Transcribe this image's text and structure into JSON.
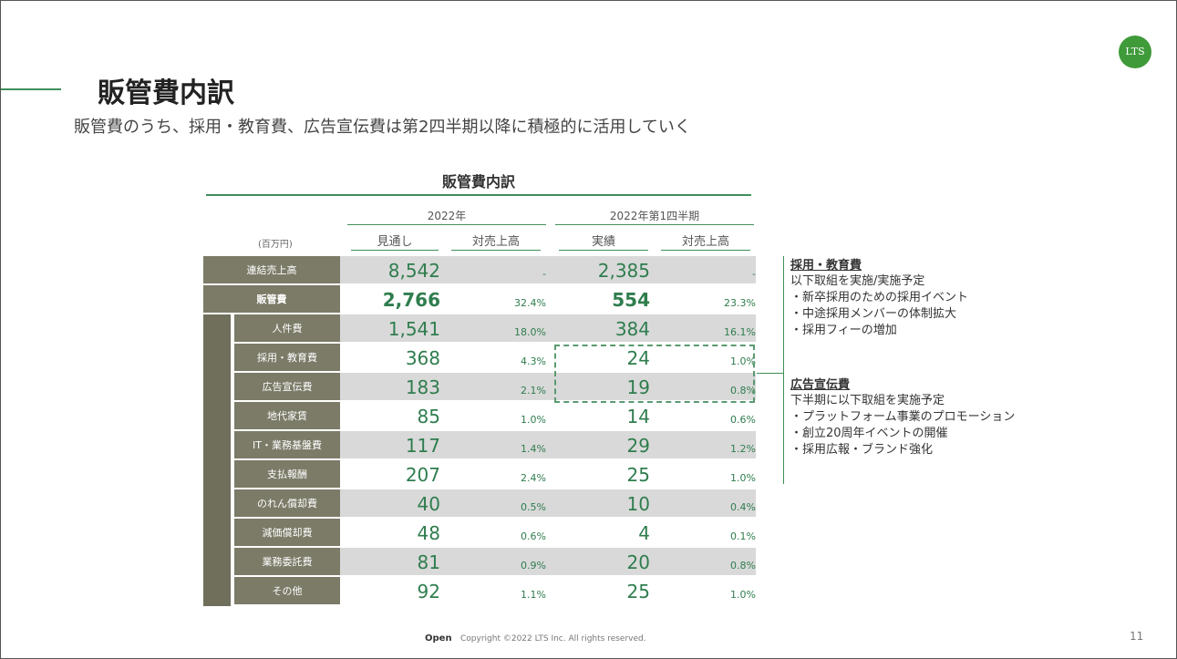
{
  "header": {
    "title": "販管費内訳",
    "subtitle": "販管費のうち、採用・教育費、広告宣伝費は第2四半期以降に積極的に活用していく",
    "logo": "LTS"
  },
  "table": {
    "title": "販管費内訳",
    "unit": "(百万円)",
    "groups": [
      "2022年",
      "2022年第1四半期"
    ],
    "columns": [
      "見通し",
      "対売上高",
      "実績",
      "対売上高"
    ],
    "rows": [
      [
        "連結売上高",
        "8,542",
        "-",
        "2,385",
        "-"
      ],
      [
        "販管費",
        "2,766",
        "32.4%",
        "554",
        "23.3%"
      ],
      [
        "人件費",
        "1,541",
        "18.0%",
        "384",
        "16.1%"
      ],
      [
        "採用・教育費",
        "368",
        "4.3%",
        "24",
        "1.0%"
      ],
      [
        "広告宣伝費",
        "183",
        "2.1%",
        "19",
        "0.8%"
      ],
      [
        "地代家賃",
        "85",
        "1.0%",
        "14",
        "0.6%"
      ],
      [
        "IT・業務基盤費",
        "117",
        "1.4%",
        "29",
        "1.2%"
      ],
      [
        "支払報酬",
        "207",
        "2.4%",
        "25",
        "1.0%"
      ],
      [
        "のれん償却費",
        "40",
        "0.5%",
        "10",
        "0.4%"
      ],
      [
        "減価償却費",
        "48",
        "0.6%",
        "4",
        "0.1%"
      ],
      [
        "業務委託費",
        "81",
        "0.9%",
        "20",
        "0.8%"
      ],
      [
        "その他",
        "92",
        "1.1%",
        "25",
        "1.0%"
      ]
    ]
  },
  "notes": [
    {
      "heading": "採用・教育費",
      "lines": [
        "以下取組を実施/実施予定",
        "・新卒採用のための採用イベント",
        "・中途採用メンバーの体制拡大",
        "・採用フィーの増加"
      ]
    },
    {
      "heading": "広告宣伝費",
      "lines": [
        "下半期に以下取組を実施予定",
        "・プラットフォーム事業のプロモーション",
        "・創立20周年イベントの開催",
        "・採用広報・ブランド強化"
      ]
    }
  ],
  "footer": {
    "label": "Open",
    "copyright": "Copyright ©2022 LTS Inc. All rights reserved.",
    "page": "11"
  }
}
